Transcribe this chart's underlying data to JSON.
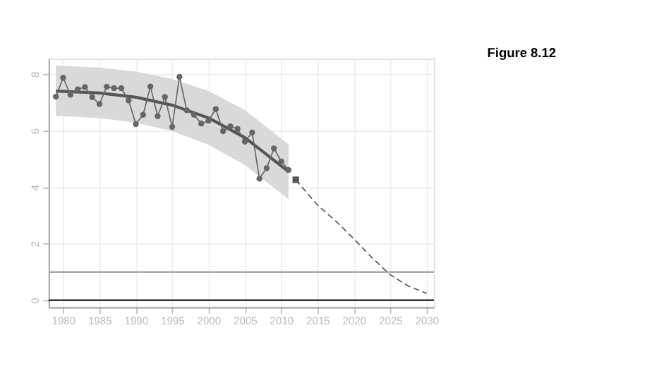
{
  "chart_data": {
    "type": "line",
    "title": "Figure 8.12",
    "xlim": [
      1978,
      2031
    ],
    "ylim": [
      -0.25,
      8.55
    ],
    "xticks": [
      1980,
      1985,
      1990,
      1995,
      2000,
      2005,
      2010,
      2015,
      2020,
      2025,
      2030
    ],
    "yticks": [
      0,
      2,
      4,
      6,
      8
    ],
    "grid": true,
    "series": [
      {
        "color": "#555555",
        "marker": "none",
        "line_style": "solid",
        "x": [
          1979,
          1985,
          1990,
          1995,
          2000,
          2005,
          2011
        ],
        "values": [
          7.4,
          7.33,
          7.18,
          6.9,
          6.45,
          5.75,
          4.55
        ],
        "lower": [
          6.52,
          6.44,
          6.28,
          5.98,
          5.5,
          4.78,
          3.57
        ],
        "upper": [
          8.3,
          8.23,
          8.09,
          7.83,
          7.4,
          6.73,
          5.52
        ]
      },
      {
        "type": "line",
        "color": "#666666",
        "marker": "circle",
        "line_style": "solid",
        "x": [
          1979,
          1980,
          1981,
          1982,
          1983,
          1984,
          1985,
          1986,
          1987,
          1988,
          1989,
          1990,
          1991,
          1992,
          1993,
          1994,
          1995,
          1996,
          1997,
          1998,
          1999,
          2000,
          2001,
          2002,
          2003,
          2004,
          2005,
          2006,
          2007,
          2008,
          2009,
          2010,
          2011
        ],
        "values": [
          7.2,
          7.87,
          7.27,
          7.46,
          7.54,
          7.18,
          6.94,
          7.55,
          7.5,
          7.5,
          7.07,
          6.23,
          6.56,
          7.56,
          6.51,
          7.19,
          6.13,
          7.9,
          6.72,
          6.56,
          6.25,
          6.35,
          6.76,
          5.98,
          6.15,
          6.06,
          5.61,
          5.93,
          4.3,
          4.67,
          5.37,
          4.91,
          4.61
        ]
      },
      {
        "type": "line",
        "color": "#555555",
        "marker": "none",
        "line_style": "dashed",
        "x": [
          2012,
          2015,
          2017.5,
          2020,
          2022.5,
          2025,
          2027.5,
          2030
        ],
        "values": [
          4.26,
          3.36,
          2.8,
          2.17,
          1.5,
          0.9,
          0.5,
          0.24
        ]
      },
      {
        "type": "scatter",
        "color": "#555555",
        "marker": "square",
        "x": [
          2012
        ],
        "values": [
          4.26
        ]
      }
    ],
    "ref_lines": [
      {
        "axis": "y",
        "value": 1,
        "color": "#aaaaaa"
      },
      {
        "axis": "y",
        "value": 0,
        "color": "#333333"
      }
    ]
  }
}
